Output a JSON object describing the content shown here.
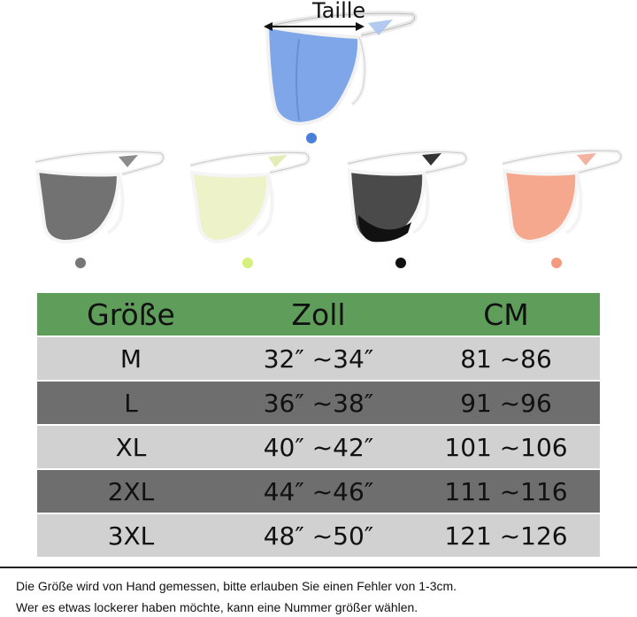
{
  "header": {
    "measure_label": "Taille"
  },
  "product": {
    "colors": [
      {
        "name": "blue",
        "hex": "#4a7fdc"
      },
      {
        "name": "gray",
        "hex": "#777777"
      },
      {
        "name": "lime",
        "hex": "#d7ef7c"
      },
      {
        "name": "black",
        "hex": "#111111"
      },
      {
        "name": "coral",
        "hex": "#f49a7e"
      }
    ]
  },
  "size_table": {
    "headers": [
      "Größe",
      "Zoll",
      "CM"
    ],
    "rows": [
      {
        "size": "M",
        "inch": "32″ ~34″",
        "cm": "81 ~86"
      },
      {
        "size": "L",
        "inch": "36″ ~38″",
        "cm": "91 ~96"
      },
      {
        "size": "XL",
        "inch": "40″ ~42″",
        "cm": "101 ~106"
      },
      {
        "size": "2XL",
        "inch": "44″ ~46″",
        "cm": "111 ~116"
      },
      {
        "size": "3XL",
        "inch": "48″ ~50″",
        "cm": "121 ~126"
      }
    ],
    "colors": {
      "header": "#5f9e5a",
      "light_row": "#d1d1d1",
      "dark_row": "#6e6e6e"
    }
  },
  "notes": {
    "line1": "Die Größe wird von Hand gemessen, bitte erlauben Sie einen Fehler von 1-3cm.",
    "line2": "Wer es etwas lockerer haben möchte, kann eine Nummer größer wählen."
  }
}
